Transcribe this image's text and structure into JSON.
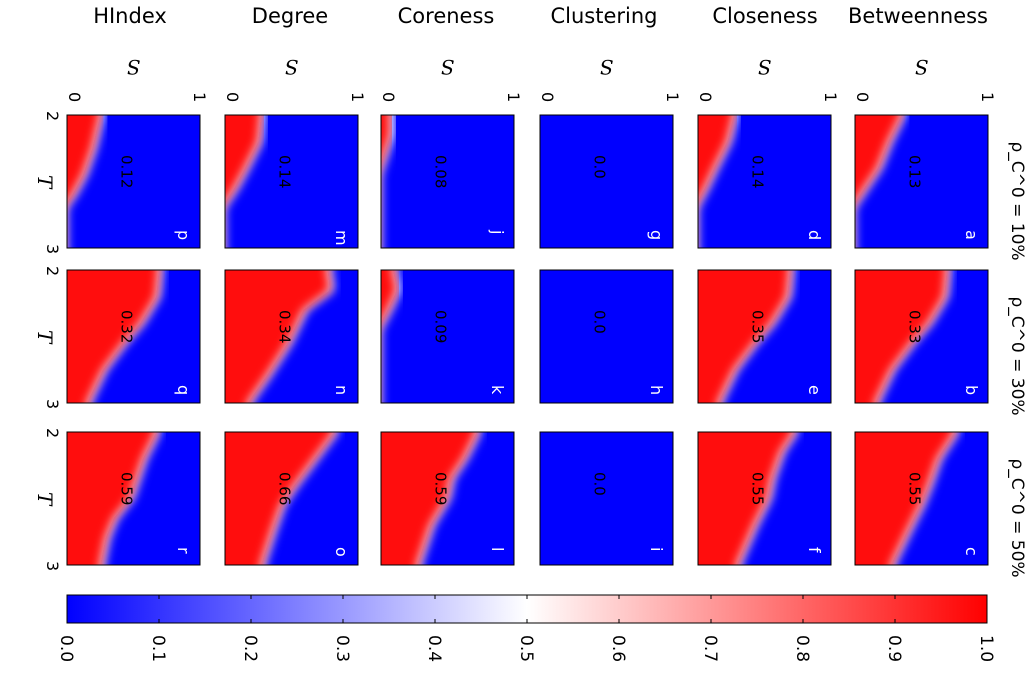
{
  "chart_data": {
    "type": "heatmap",
    "column_titles": [
      "HIndex",
      "Degree",
      "Coreness",
      "Clustering",
      "Closeness",
      "Betweenness"
    ],
    "row_titles": [
      "ρ_C^0 = 10%",
      "ρ_C^0 = 30%",
      "ρ_C^0 = 50%"
    ],
    "s_axis_label": "S",
    "t_axis_label": "T",
    "s_range": [
      0,
      1
    ],
    "t_range": [
      2,
      3
    ],
    "s_tick_labels": [
      "0",
      "1"
    ],
    "t_tick_labels": [
      "2",
      "3"
    ],
    "colorbar": {
      "min": 0.0,
      "max": 1.0,
      "tick_labels": [
        "0.0",
        "0.1",
        "0.2",
        "0.3",
        "0.4",
        "0.5",
        "0.6",
        "0.7",
        "0.8",
        "0.9",
        "1.0"
      ],
      "colors": [
        "#0000ff",
        "#ffffff",
        "#ff0000"
      ]
    },
    "panels": [
      {
        "letter": "p",
        "measure": "HIndex",
        "rho": "10%",
        "value": "0.12",
        "boundary": [
          [
            0.0,
            0.72
          ],
          [
            0.25,
            0.78
          ],
          [
            0.45,
            0.85
          ],
          [
            0.6,
            0.93
          ],
          [
            0.7,
            1.0
          ]
        ]
      },
      {
        "letter": "q",
        "measure": "HIndex",
        "rho": "30%",
        "value": "0.32",
        "boundary": [
          [
            0.0,
            0.28
          ],
          [
            0.2,
            0.3
          ],
          [
            0.4,
            0.42
          ],
          [
            0.55,
            0.55
          ],
          [
            0.75,
            0.7
          ],
          [
            1.0,
            0.82
          ]
        ]
      },
      {
        "letter": "r",
        "measure": "HIndex",
        "rho": "50%",
        "value": "0.59",
        "boundary": [
          [
            0.0,
            0.3
          ],
          [
            0.2,
            0.4
          ],
          [
            0.35,
            0.45
          ],
          [
            0.5,
            0.5
          ],
          [
            0.65,
            0.62
          ],
          [
            0.8,
            0.68
          ],
          [
            1.0,
            0.72
          ]
        ]
      },
      {
        "letter": "m",
        "measure": "Degree",
        "rho": "10%",
        "value": "0.14",
        "boundary": [
          [
            0.0,
            0.7
          ],
          [
            0.2,
            0.72
          ],
          [
            0.4,
            0.82
          ],
          [
            0.55,
            0.9
          ],
          [
            0.7,
            1.0
          ]
        ]
      },
      {
        "letter": "n",
        "measure": "Degree",
        "rho": "30%",
        "value": "0.34",
        "boundary": [
          [
            0.0,
            0.2
          ],
          [
            0.15,
            0.18
          ],
          [
            0.3,
            0.38
          ],
          [
            0.55,
            0.5
          ],
          [
            0.8,
            0.66
          ],
          [
            1.0,
            0.8
          ]
        ]
      },
      {
        "letter": "o",
        "measure": "Degree",
        "rho": "50%",
        "value": "0.66",
        "boundary": [
          [
            0.0,
            0.15
          ],
          [
            0.2,
            0.3
          ],
          [
            0.4,
            0.45
          ],
          [
            0.55,
            0.55
          ],
          [
            0.75,
            0.62
          ],
          [
            1.0,
            0.7
          ]
        ]
      },
      {
        "letter": "j",
        "measure": "Coreness",
        "rho": "10%",
        "value": "0.08",
        "boundary": [
          [
            0.0,
            0.9
          ],
          [
            0.15,
            0.9
          ],
          [
            0.3,
            0.95
          ],
          [
            0.45,
            1.0
          ]
        ]
      },
      {
        "letter": "k",
        "measure": "Coreness",
        "rho": "30%",
        "value": "0.09",
        "boundary": [
          [
            0.0,
            0.88
          ],
          [
            0.15,
            0.85
          ],
          [
            0.3,
            0.92
          ],
          [
            0.45,
            1.0
          ]
        ]
      },
      {
        "letter": "l",
        "measure": "Coreness",
        "rho": "50%",
        "value": "0.59",
        "boundary": [
          [
            0.0,
            0.25
          ],
          [
            0.2,
            0.35
          ],
          [
            0.35,
            0.45
          ],
          [
            0.5,
            0.48
          ],
          [
            0.7,
            0.6
          ],
          [
            1.0,
            0.7
          ]
        ]
      },
      {
        "letter": "g",
        "measure": "Clustering",
        "rho": "10%",
        "value": "0.0",
        "boundary": []
      },
      {
        "letter": "h",
        "measure": "Clustering",
        "rho": "30%",
        "value": "0.0",
        "boundary": []
      },
      {
        "letter": "i",
        "measure": "Clustering",
        "rho": "50%",
        "value": "0.0",
        "boundary": []
      },
      {
        "letter": "d",
        "measure": "Closeness",
        "rho": "10%",
        "value": "0.14",
        "boundary": [
          [
            0.0,
            0.7
          ],
          [
            0.2,
            0.75
          ],
          [
            0.4,
            0.85
          ],
          [
            0.55,
            0.92
          ],
          [
            0.7,
            1.0
          ]
        ]
      },
      {
        "letter": "e",
        "measure": "Closeness",
        "rho": "30%",
        "value": "0.35",
        "boundary": [
          [
            0.0,
            0.28
          ],
          [
            0.2,
            0.3
          ],
          [
            0.4,
            0.42
          ],
          [
            0.55,
            0.55
          ],
          [
            0.75,
            0.7
          ],
          [
            1.0,
            0.82
          ]
        ]
      },
      {
        "letter": "f",
        "measure": "Closeness",
        "rho": "50%",
        "value": "0.55",
        "boundary": [
          [
            0.0,
            0.25
          ],
          [
            0.15,
            0.35
          ],
          [
            0.35,
            0.42
          ],
          [
            0.5,
            0.45
          ],
          [
            0.7,
            0.55
          ],
          [
            1.0,
            0.68
          ]
        ]
      },
      {
        "letter": "a",
        "measure": "Betweenness",
        "rho": "10%",
        "value": "0.13",
        "boundary": [
          [
            0.0,
            0.62
          ],
          [
            0.2,
            0.72
          ],
          [
            0.4,
            0.8
          ],
          [
            0.55,
            0.9
          ],
          [
            0.7,
            1.0
          ]
        ]
      },
      {
        "letter": "b",
        "measure": "Betweenness",
        "rho": "30%",
        "value": "0.33",
        "boundary": [
          [
            0.0,
            0.28
          ],
          [
            0.2,
            0.3
          ],
          [
            0.4,
            0.42
          ],
          [
            0.55,
            0.55
          ],
          [
            0.75,
            0.7
          ],
          [
            1.0,
            0.82
          ]
        ]
      },
      {
        "letter": "c",
        "measure": "Betweenness",
        "rho": "50%",
        "value": "0.55",
        "boundary": [
          [
            0.0,
            0.22
          ],
          [
            0.2,
            0.35
          ],
          [
            0.4,
            0.42
          ],
          [
            0.55,
            0.48
          ],
          [
            0.75,
            0.58
          ],
          [
            1.0,
            0.7
          ]
        ]
      }
    ]
  }
}
